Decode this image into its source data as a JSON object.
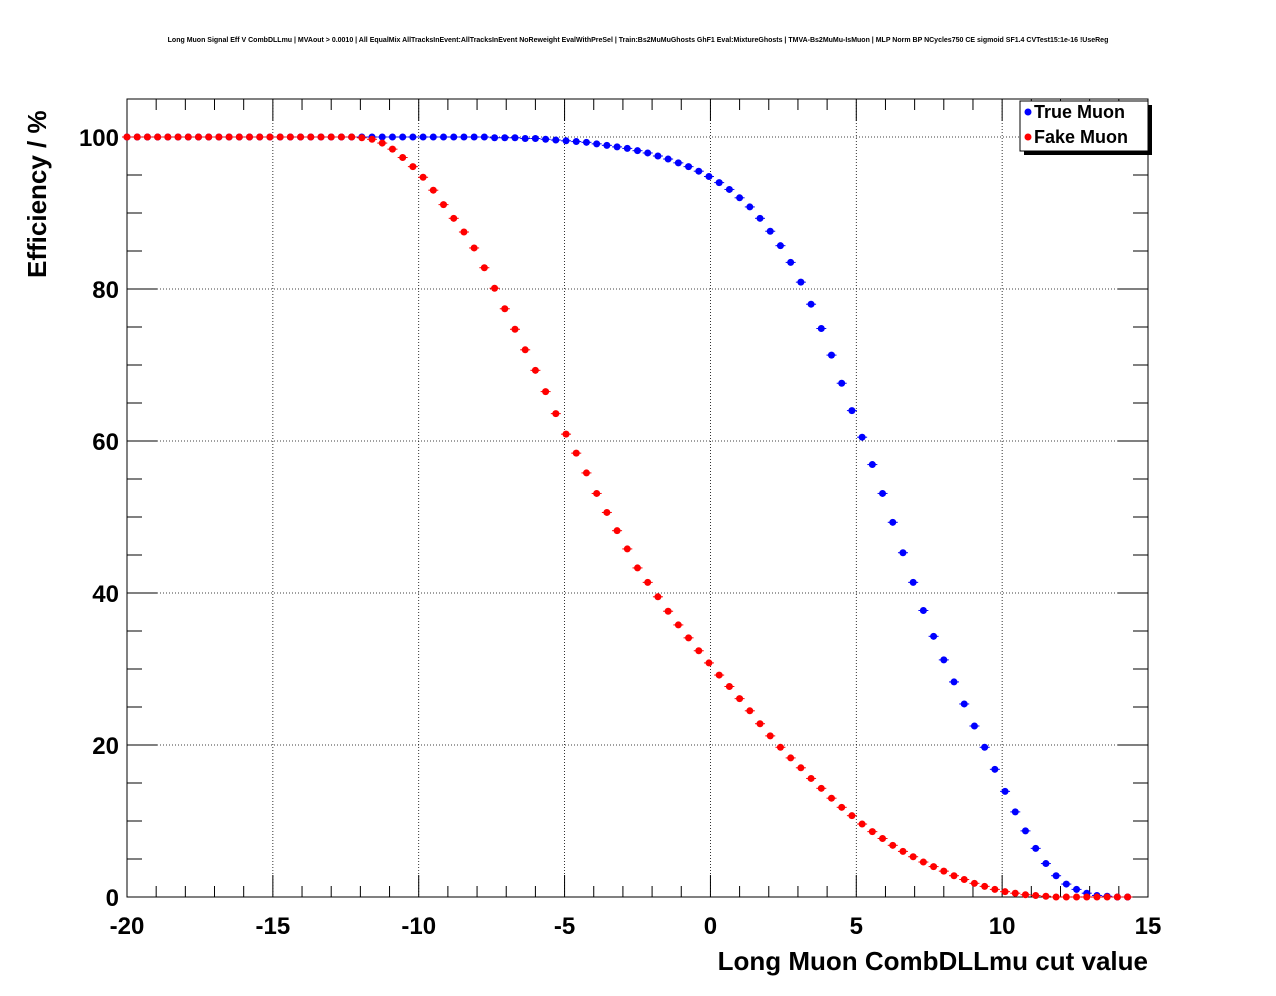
{
  "chart_data": {
    "type": "scatter",
    "title": "Long Muon Signal Eff V CombDLLmu | MVAout > 0.0010 | All EqualMix AllTracksInEvent:AllTracksInEvent NoReweight EvalWithPreSel | Train:Bs2MuMuGhosts GhF1 Eval:MixtureGhosts | TMVA-Bs2MuMu-IsMuon | MLP Norm BP NCycles750 CE sigmoid SF1.4 CVTest15:1e-16 !UseReg",
    "xlabel": "Long Muon CombDLLmu cut value",
    "ylabel": "Efficiency / %",
    "xlim": [
      -20,
      15
    ],
    "ylim": [
      0,
      105
    ],
    "xticks": [
      "-20",
      "-15",
      "-10",
      "-5",
      "0",
      "5",
      "10",
      "15"
    ],
    "yticks": [
      "0",
      "20",
      "40",
      "60",
      "80",
      "100"
    ],
    "grid": true,
    "legend_position": "top-right",
    "series": [
      {
        "name": "True Muon",
        "color": "#0000ff",
        "x": [
          -20,
          -19.65,
          -19.3,
          -18.95,
          -18.6,
          -18.25,
          -17.9,
          -17.55,
          -17.2,
          -16.85,
          -16.5,
          -16.15,
          -15.8,
          -15.45,
          -15.1,
          -14.75,
          -14.4,
          -14.05,
          -13.7,
          -13.35,
          -13,
          -12.65,
          -12.3,
          -11.95,
          -11.6,
          -11.25,
          -10.9,
          -10.55,
          -10.2,
          -9.85,
          -9.5,
          -9.15,
          -8.8,
          -8.45,
          -8.1,
          -7.75,
          -7.4,
          -7.05,
          -6.7,
          -6.35,
          -6,
          -5.65,
          -5.3,
          -4.95,
          -4.6,
          -4.25,
          -3.9,
          -3.55,
          -3.2,
          -2.85,
          -2.5,
          -2.15,
          -1.8,
          -1.45,
          -1.1,
          -0.75,
          -0.4,
          -0.05,
          0.3,
          0.65,
          1,
          1.35,
          1.7,
          2.05,
          2.4,
          2.75,
          3.1,
          3.45,
          3.8,
          4.15,
          4.5,
          4.85,
          5.2,
          5.55,
          5.9,
          6.25,
          6.6,
          6.95,
          7.3,
          7.65,
          8,
          8.35,
          8.7,
          9.05,
          9.4,
          9.75,
          10.1,
          10.45,
          10.8,
          11.15,
          11.5,
          11.85,
          12.2,
          12.55,
          12.9,
          13.25,
          13.6,
          13.95,
          14.3
        ],
        "y": [
          100,
          100,
          100,
          100,
          100,
          100,
          100,
          100,
          100,
          100,
          100,
          100,
          100,
          100,
          100,
          100,
          100,
          100,
          100,
          100,
          100,
          100,
          100,
          100,
          100,
          100,
          100,
          100,
          100,
          100,
          100,
          100,
          100,
          100,
          100,
          100,
          99.9,
          99.9,
          99.9,
          99.8,
          99.8,
          99.7,
          99.6,
          99.5,
          99.4,
          99.3,
          99.1,
          98.9,
          98.7,
          98.5,
          98.2,
          97.9,
          97.5,
          97.1,
          96.6,
          96.1,
          95.5,
          94.8,
          94,
          93.1,
          92,
          90.8,
          89.3,
          87.6,
          85.7,
          83.5,
          80.9,
          78,
          74.8,
          71.3,
          67.6,
          64,
          60.5,
          56.9,
          53.1,
          49.3,
          45.3,
          41.4,
          37.7,
          34.3,
          31.2,
          28.3,
          25.4,
          22.5,
          19.7,
          16.8,
          13.9,
          11.2,
          8.7,
          6.4,
          4.4,
          2.8,
          1.7,
          1,
          0.5,
          0.2,
          0.1,
          0,
          0
        ]
      },
      {
        "name": "Fake Muon",
        "color": "#ff0000",
        "x": [
          -20,
          -19.65,
          -19.3,
          -18.95,
          -18.6,
          -18.25,
          -17.9,
          -17.55,
          -17.2,
          -16.85,
          -16.5,
          -16.15,
          -15.8,
          -15.45,
          -15.1,
          -14.75,
          -14.4,
          -14.05,
          -13.7,
          -13.35,
          -13,
          -12.65,
          -12.3,
          -11.95,
          -11.6,
          -11.25,
          -10.9,
          -10.55,
          -10.2,
          -9.85,
          -9.5,
          -9.15,
          -8.8,
          -8.45,
          -8.1,
          -7.75,
          -7.4,
          -7.05,
          -6.7,
          -6.35,
          -6,
          -5.65,
          -5.3,
          -4.95,
          -4.6,
          -4.25,
          -3.9,
          -3.55,
          -3.2,
          -2.85,
          -2.5,
          -2.15,
          -1.8,
          -1.45,
          -1.1,
          -0.75,
          -0.4,
          -0.05,
          0.3,
          0.65,
          1,
          1.35,
          1.7,
          2.05,
          2.4,
          2.75,
          3.1,
          3.45,
          3.8,
          4.15,
          4.5,
          4.85,
          5.2,
          5.55,
          5.9,
          6.25,
          6.6,
          6.95,
          7.3,
          7.65,
          8,
          8.35,
          8.7,
          9.05,
          9.4,
          9.75,
          10.1,
          10.45,
          10.8,
          11.15,
          11.5,
          11.85,
          12.2,
          12.55,
          12.9,
          13.25,
          13.6,
          13.95,
          14.3
        ],
        "y": [
          100,
          100,
          100,
          100,
          100,
          100,
          100,
          100,
          100,
          100,
          100,
          100,
          100,
          100,
          100,
          100,
          100,
          100,
          100,
          100,
          100,
          100,
          100,
          99.9,
          99.7,
          99.2,
          98.4,
          97.3,
          96.1,
          94.7,
          93,
          91.1,
          89.3,
          87.5,
          85.4,
          82.8,
          80.1,
          77.4,
          74.7,
          72,
          69.3,
          66.5,
          63.6,
          60.9,
          58.4,
          55.8,
          53.1,
          50.6,
          48.2,
          45.8,
          43.3,
          41.4,
          39.5,
          37.6,
          35.8,
          34.1,
          32.4,
          30.8,
          29.2,
          27.7,
          26.1,
          24.5,
          22.8,
          21.2,
          19.7,
          18.3,
          17,
          15.6,
          14.3,
          13,
          11.8,
          10.7,
          9.6,
          8.6,
          7.7,
          6.8,
          6,
          5.3,
          4.6,
          4,
          3.4,
          2.8,
          2.3,
          1.8,
          1.4,
          1,
          0.7,
          0.5,
          0.3,
          0.2,
          0.1,
          0,
          0,
          0,
          0,
          0,
          0,
          0,
          0
        ]
      }
    ]
  }
}
